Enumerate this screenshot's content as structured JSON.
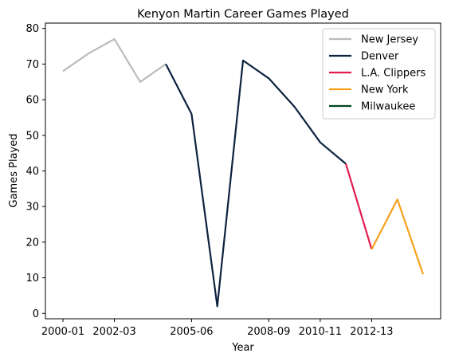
{
  "chart_data": {
    "type": "line",
    "title": "Kenyon Martin Career Games Played",
    "xlabel": "Year",
    "ylabel": "Games Played",
    "x": [
      "2000-01",
      "2001-02",
      "2002-03",
      "2003-04",
      "2004-05",
      "2005-06",
      "2006-07",
      "2007-08",
      "2008-09",
      "2009-10",
      "2010-11",
      "2011-12",
      "2012-13",
      "2013-14",
      "2014-15"
    ],
    "xticks": [
      "2000-01",
      "2002-03",
      "2005-06",
      "2008-09",
      "2010-11",
      "2012-13"
    ],
    "ylim": [
      -1.5,
      81.5
    ],
    "yticks": [
      0,
      10,
      20,
      30,
      40,
      50,
      60,
      70,
      80
    ],
    "grid": false,
    "legend_position": "top-right",
    "series": [
      {
        "name": "New Jersey",
        "color": "#bbbbbb",
        "x": [
          "2000-01",
          "2001-02",
          "2002-03",
          "2003-04",
          "2004-05"
        ],
        "values": [
          68,
          73,
          77,
          65,
          70
        ]
      },
      {
        "name": "Denver",
        "color": "#0e2240",
        "x": [
          "2004-05",
          "2005-06",
          "2006-07",
          "2007-08",
          "2008-09",
          "2009-10",
          "2010-11",
          "2011-12"
        ],
        "values": [
          70,
          56,
          2,
          71,
          66,
          58,
          48,
          42
        ]
      },
      {
        "name": "L.A. Clippers",
        "color": "#e31b4f",
        "x": [
          "2011-12",
          "2012-13"
        ],
        "values": [
          42,
          18
        ]
      },
      {
        "name": "New York",
        "color": "#f5a11d",
        "x": [
          "2012-13",
          "2013-14",
          "2014-15"
        ],
        "values": [
          18,
          32,
          11
        ]
      },
      {
        "name": "Milwaukee",
        "color": "#00471b",
        "x": [],
        "values": []
      }
    ]
  }
}
